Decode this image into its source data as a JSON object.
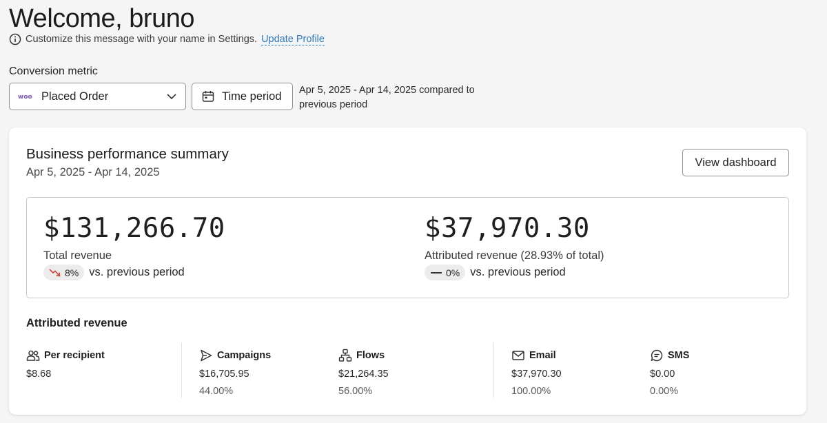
{
  "header": {
    "title": "Welcome, bruno",
    "subtitle": "Customize this message with your name in Settings.",
    "update_link": "Update Profile"
  },
  "filters": {
    "metric_label": "Conversion metric",
    "metric_value": "Placed Order",
    "metric_icon": "woo-logo-icon",
    "time_button": "Time period",
    "date_range_text": "Apr 5, 2025 - Apr 14, 2025 compared to previous period"
  },
  "card": {
    "title": "Business performance summary",
    "date_range": "Apr 5, 2025 - Apr 14, 2025",
    "view_button": "View dashboard",
    "total": {
      "value": "$131,266.70",
      "label": "Total revenue",
      "change": "8%",
      "trend": "down",
      "trend_color": "#d0453a",
      "change_text": "vs. previous period"
    },
    "attributed": {
      "value": "$37,970.30",
      "label": "Attributed revenue (28.93% of total)",
      "change": "0%",
      "trend": "flat",
      "change_text": "vs. previous period"
    },
    "attributed_section": {
      "title": "Attributed revenue",
      "columns": [
        {
          "label": "Per recipient",
          "icon": "people-icon",
          "value": "$8.68",
          "percent": ""
        },
        {
          "label": "Campaigns",
          "icon": "send-icon",
          "value": "$16,705.95",
          "percent": "44.00%"
        },
        {
          "label": "Flows",
          "icon": "flow-icon",
          "value": "$21,264.35",
          "percent": "56.00%"
        },
        {
          "label": "Email",
          "icon": "mail-icon",
          "value": "$37,970.30",
          "percent": "100.00%"
        },
        {
          "label": "SMS",
          "icon": "chat-icon",
          "value": "$0.00",
          "percent": "0.00%"
        }
      ]
    }
  }
}
